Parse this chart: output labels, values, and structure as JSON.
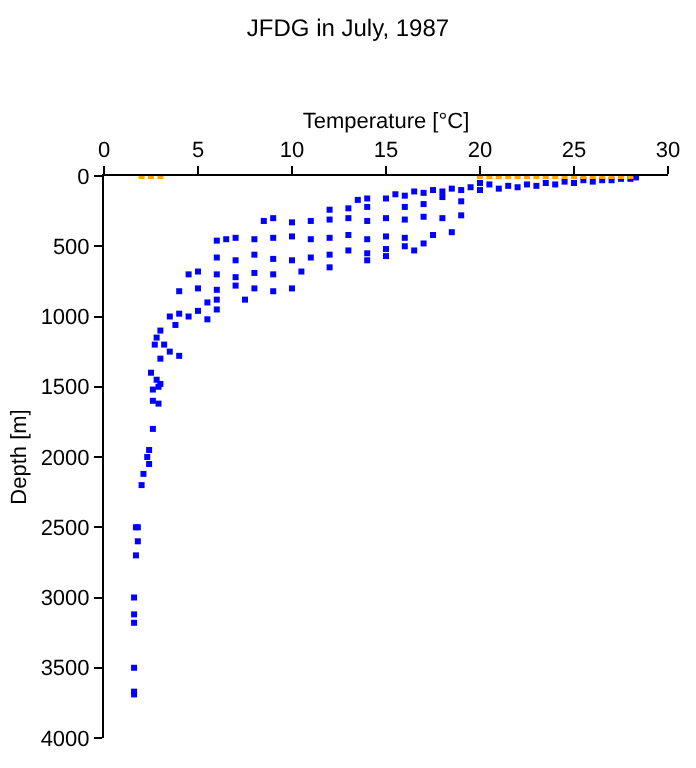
{
  "chart_data": {
    "type": "scatter",
    "title": "JFDG in July, 1987",
    "xlabel": "Temperature [°C]",
    "ylabel": "Depth [m]",
    "xlim": [
      0,
      30
    ],
    "xticks": [
      0,
      5,
      10,
      15,
      20,
      25,
      30
    ],
    "ylim": [
      4000,
      0
    ],
    "yticks": [
      0,
      500,
      1000,
      1500,
      2000,
      2500,
      3000,
      3500,
      4000
    ],
    "marker": "square",
    "series": [
      {
        "color": "#0000ff",
        "x": [
          28.3,
          28,
          27.5,
          27,
          26.5,
          26,
          25.5,
          25,
          24.5,
          24,
          23.5,
          23,
          22.5,
          22,
          21.5,
          21,
          20.5,
          20,
          20,
          19.5,
          19,
          18.5,
          18,
          17.5,
          17,
          16.5,
          16,
          15.5,
          15,
          14,
          13.5,
          18,
          19,
          17,
          16,
          14,
          13,
          12,
          19,
          18,
          17,
          16,
          15,
          14,
          13,
          12,
          11,
          10,
          9,
          8.5,
          18.5,
          17.5,
          16,
          15,
          14,
          13,
          12,
          11,
          10,
          9,
          8,
          7,
          6.5,
          6,
          17,
          16,
          15,
          14,
          13,
          12,
          11,
          10,
          9,
          8,
          7,
          6,
          14,
          15,
          16.5,
          12,
          10.5,
          9,
          8,
          7,
          6,
          5,
          4.5,
          10,
          9,
          8,
          7,
          6,
          5,
          4,
          7.5,
          6,
          5.5,
          6,
          5,
          4,
          3.5,
          4.5,
          5.5,
          3.8,
          3,
          2.8,
          3.2,
          2.7,
          3.5,
          3,
          4,
          2.5,
          2.8,
          3.0,
          2.6,
          2.9,
          2.6,
          2.9,
          2.6,
          2.4,
          2.3,
          2.4,
          2.1,
          2.0,
          1.8,
          1.7,
          1.8,
          1.7,
          1.6,
          1.6,
          1.6,
          1.6,
          1.6,
          1.6
        ],
        "values": [
          10,
          20,
          20,
          30,
          30,
          40,
          30,
          50,
          40,
          60,
          50,
          70,
          60,
          80,
          70,
          90,
          60,
          50,
          100,
          80,
          100,
          90,
          110,
          100,
          120,
          110,
          140,
          130,
          160,
          160,
          170,
          150,
          180,
          200,
          220,
          220,
          230,
          240,
          280,
          300,
          290,
          310,
          300,
          320,
          300,
          310,
          320,
          330,
          300,
          320,
          400,
          420,
          440,
          430,
          450,
          420,
          440,
          450,
          430,
          440,
          450,
          440,
          450,
          460,
          480,
          500,
          520,
          550,
          530,
          560,
          580,
          600,
          590,
          560,
          600,
          580,
          600,
          570,
          530,
          650,
          680,
          700,
          690,
          720,
          700,
          680,
          700,
          800,
          820,
          800,
          780,
          810,
          800,
          820,
          880,
          880,
          900,
          950,
          960,
          980,
          1000,
          1000,
          1020,
          1060,
          1100,
          1150,
          1200,
          1200,
          1250,
          1300,
          1280,
          1400,
          1450,
          1480,
          1520,
          1500,
          1600,
          1620,
          1800,
          1950,
          2000,
          2050,
          2120,
          2200,
          2500,
          2500,
          2600,
          2700,
          3000,
          3120,
          3180,
          3500,
          3670,
          3690
        ]
      },
      {
        "color": "#ffa500",
        "x": [
          2,
          2.5,
          3,
          20,
          20.5,
          21,
          21.5,
          22,
          22.5,
          23,
          23.5,
          24,
          24.5,
          25,
          25.5,
          26,
          26.5,
          27,
          27.5,
          28
        ],
        "values": [
          0,
          0,
          0,
          0,
          0,
          0,
          0,
          0,
          0,
          0,
          0,
          0,
          0,
          0,
          0,
          0,
          0,
          0,
          0,
          0
        ]
      }
    ]
  }
}
